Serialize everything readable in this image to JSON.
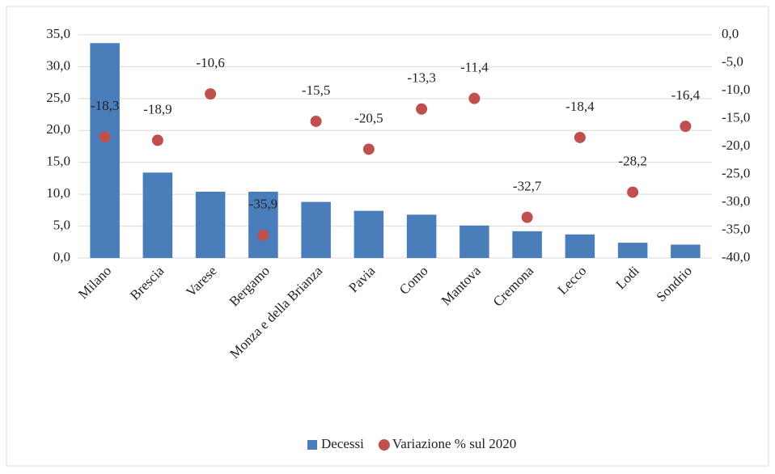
{
  "chart_data": {
    "type": "bar",
    "categories": [
      "Milano",
      "Brescia",
      "Varese",
      "Bergamo",
      "Monza e della Brianza",
      "Pavia",
      "Como",
      "Mantova",
      "Cremona",
      "Lecco",
      "Lodi",
      "Sondrio"
    ],
    "series": [
      {
        "name": "Decessi",
        "type": "bar",
        "color": "#4a7ebb",
        "values": [
          33.7,
          13.4,
          10.4,
          10.4,
          8.8,
          7.4,
          6.8,
          5.1,
          4.2,
          3.7,
          2.4,
          2.1
        ]
      },
      {
        "name": "Variazione % sul 2020",
        "type": "scatter",
        "axis": "y2",
        "color": "#c0504d",
        "values": [
          -18.3,
          -18.9,
          -10.6,
          -35.9,
          -15.5,
          -20.5,
          -13.3,
          -11.4,
          -32.7,
          -18.4,
          -28.2,
          -16.4
        ],
        "value_labels": [
          "-18,3",
          "-18,9",
          "-10,6",
          "-35,9",
          "-15,5",
          "-20,5",
          "-13,3",
          "-11,4",
          "-32,7",
          "-18,4",
          "-28,2",
          "-16,4"
        ]
      }
    ],
    "ylim": [
      0,
      35
    ],
    "yticks": [
      {
        "value": 0,
        "label": "0,0"
      },
      {
        "value": 5,
        "label": "5,0"
      },
      {
        "value": 10,
        "label": "10,0"
      },
      {
        "value": 15,
        "label": "15,0"
      },
      {
        "value": 20,
        "label": "20,0"
      },
      {
        "value": 25,
        "label": "25,0"
      },
      {
        "value": 30,
        "label": "30,0"
      },
      {
        "value": 35,
        "label": "35,0"
      }
    ],
    "y2lim": [
      -40,
      0
    ],
    "y2ticks": [
      {
        "value": -40,
        "label": "-40,0"
      },
      {
        "value": -35,
        "label": "-35,0"
      },
      {
        "value": -30,
        "label": "-30,0"
      },
      {
        "value": -25,
        "label": "-25,0"
      },
      {
        "value": -20,
        "label": "-20,0"
      },
      {
        "value": -15,
        "label": "-15,0"
      },
      {
        "value": -10,
        "label": "-10,0"
      },
      {
        "value": -5,
        "label": "-5,0"
      },
      {
        "value": 0,
        "label": "0,0"
      }
    ],
    "grid": true,
    "legend": "bottom"
  }
}
